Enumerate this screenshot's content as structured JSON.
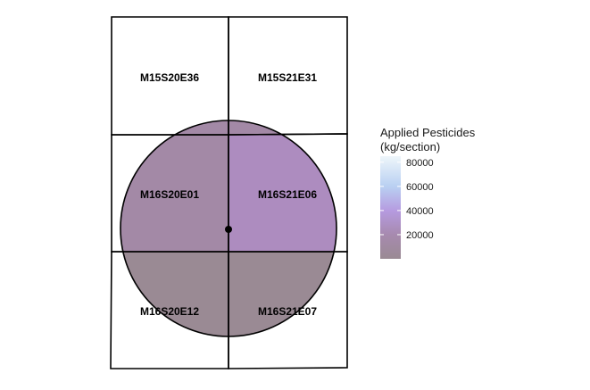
{
  "legend": {
    "title_line1": "Applied Pesticides",
    "title_line2": "(kg/section)",
    "min": 0,
    "max": 85000,
    "ticks": [
      {
        "value": 80000,
        "label": "80000"
      },
      {
        "value": 60000,
        "label": "60000"
      },
      {
        "value": 40000,
        "label": "40000"
      },
      {
        "value": 20000,
        "label": "20000"
      }
    ],
    "gradient": [
      {
        "value": 0,
        "color": "#9a8a94"
      },
      {
        "value": 20000,
        "color": "#a78aaf"
      },
      {
        "value": 40000,
        "color": "#b69be0"
      },
      {
        "value": 60000,
        "color": "#b9d0f2"
      },
      {
        "value": 85000,
        "color": "#eef6fa"
      }
    ]
  },
  "map": {
    "sections": [
      {
        "label": "M15S20E36",
        "shaded": false
      },
      {
        "label": "M15S21E31",
        "shaded": false
      },
      {
        "label": "M16S20E01",
        "shaded": true,
        "color": "#a389a6"
      },
      {
        "label": "M16S21E06",
        "shaded": true,
        "color": "#ad8cbf"
      },
      {
        "label": "M16S20E12",
        "shaded": true,
        "color": "#9a8a94"
      },
      {
        "label": "M16S21E07",
        "shaded": true,
        "color": "#9a8a94"
      }
    ],
    "buffer_circle": true,
    "center_point": true
  }
}
